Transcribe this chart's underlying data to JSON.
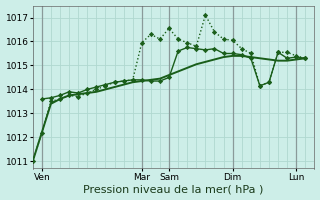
{
  "background_color": "#cdeee8",
  "grid_color": "#b0d8d0",
  "vline_color": "#8a9a99",
  "line_color": "#1a5e1a",
  "xlim": [
    0,
    31
  ],
  "ylim": [
    1010.7,
    1017.5
  ],
  "yticks": [
    1011,
    1012,
    1013,
    1014,
    1015,
    1016,
    1017
  ],
  "xlabel": "Pression niveau de la mer( hPa )",
  "xlabel_fontsize": 8,
  "tick_fontsize": 6.5,
  "day_labels": [
    {
      "label": "Ven",
      "x": 1
    },
    {
      "label": "Mar",
      "x": 12
    },
    {
      "label": "Sam",
      "x": 15
    },
    {
      "label": "Dim",
      "x": 22
    },
    {
      "label": "Lun",
      "x": 29
    }
  ],
  "day_vlines": [
    1,
    12,
    15,
    22,
    29
  ],
  "n_grid_lines": 31,
  "series": [
    {
      "x": [
        0,
        1,
        2,
        3,
        4,
        5,
        6,
        7,
        8,
        9,
        10,
        11,
        12,
        13,
        14,
        15,
        16,
        17,
        18,
        19,
        20,
        21,
        22,
        23,
        24,
        25,
        26,
        27,
        28,
        29,
        30
      ],
      "y": [
        1011.0,
        1012.2,
        1013.4,
        1013.6,
        1013.75,
        1013.8,
        1013.85,
        1013.9,
        1014.0,
        1014.1,
        1014.2,
        1014.3,
        1014.35,
        1014.4,
        1014.45,
        1014.6,
        1014.75,
        1014.9,
        1015.05,
        1015.15,
        1015.25,
        1015.35,
        1015.4,
        1015.4,
        1015.35,
        1015.3,
        1015.25,
        1015.2,
        1015.2,
        1015.25,
        1015.3
      ],
      "style": "-",
      "marker": null,
      "lw": 1.4
    },
    {
      "x": [
        1,
        2,
        3,
        4,
        5,
        6,
        7,
        8,
        9,
        10,
        11,
        12,
        13,
        14,
        15,
        16,
        17,
        18,
        19,
        20,
        21,
        22,
        23,
        24,
        25,
        26,
        27,
        28,
        29,
        30
      ],
      "y": [
        1013.6,
        1013.65,
        1013.75,
        1013.9,
        1013.85,
        1014.0,
        1014.1,
        1014.2,
        1014.3,
        1014.35,
        1014.4,
        1014.4,
        1014.35,
        1014.35,
        1014.5,
        1015.6,
        1015.75,
        1015.7,
        1015.65,
        1015.7,
        1015.5,
        1015.5,
        1015.45,
        1015.3,
        1014.15,
        1014.3,
        1015.55,
        1015.3,
        1015.35,
        1015.3
      ],
      "style": "-",
      "marker": "D",
      "markersize": 2.2,
      "lw": 1.0
    },
    {
      "x": [
        0,
        1,
        2,
        3,
        4,
        5,
        6,
        7,
        8,
        9,
        10,
        11,
        12,
        13,
        14,
        15,
        16,
        17,
        18,
        19,
        20,
        21,
        22,
        23,
        24,
        25,
        26,
        27,
        28,
        29,
        30
      ],
      "y": [
        1011.0,
        1012.2,
        1013.5,
        1013.6,
        1013.75,
        1013.7,
        1013.85,
        1014.0,
        1014.15,
        1014.3,
        1014.35,
        1014.4,
        1015.95,
        1016.3,
        1016.1,
        1016.55,
        1016.1,
        1015.95,
        1015.8,
        1017.1,
        1016.4,
        1016.1,
        1016.05,
        1015.7,
        1015.5,
        1014.15,
        1014.3,
        1015.55,
        1015.55,
        1015.4,
        1015.3
      ],
      "style": ":",
      "marker": "D",
      "markersize": 2.2,
      "lw": 1.0
    }
  ]
}
